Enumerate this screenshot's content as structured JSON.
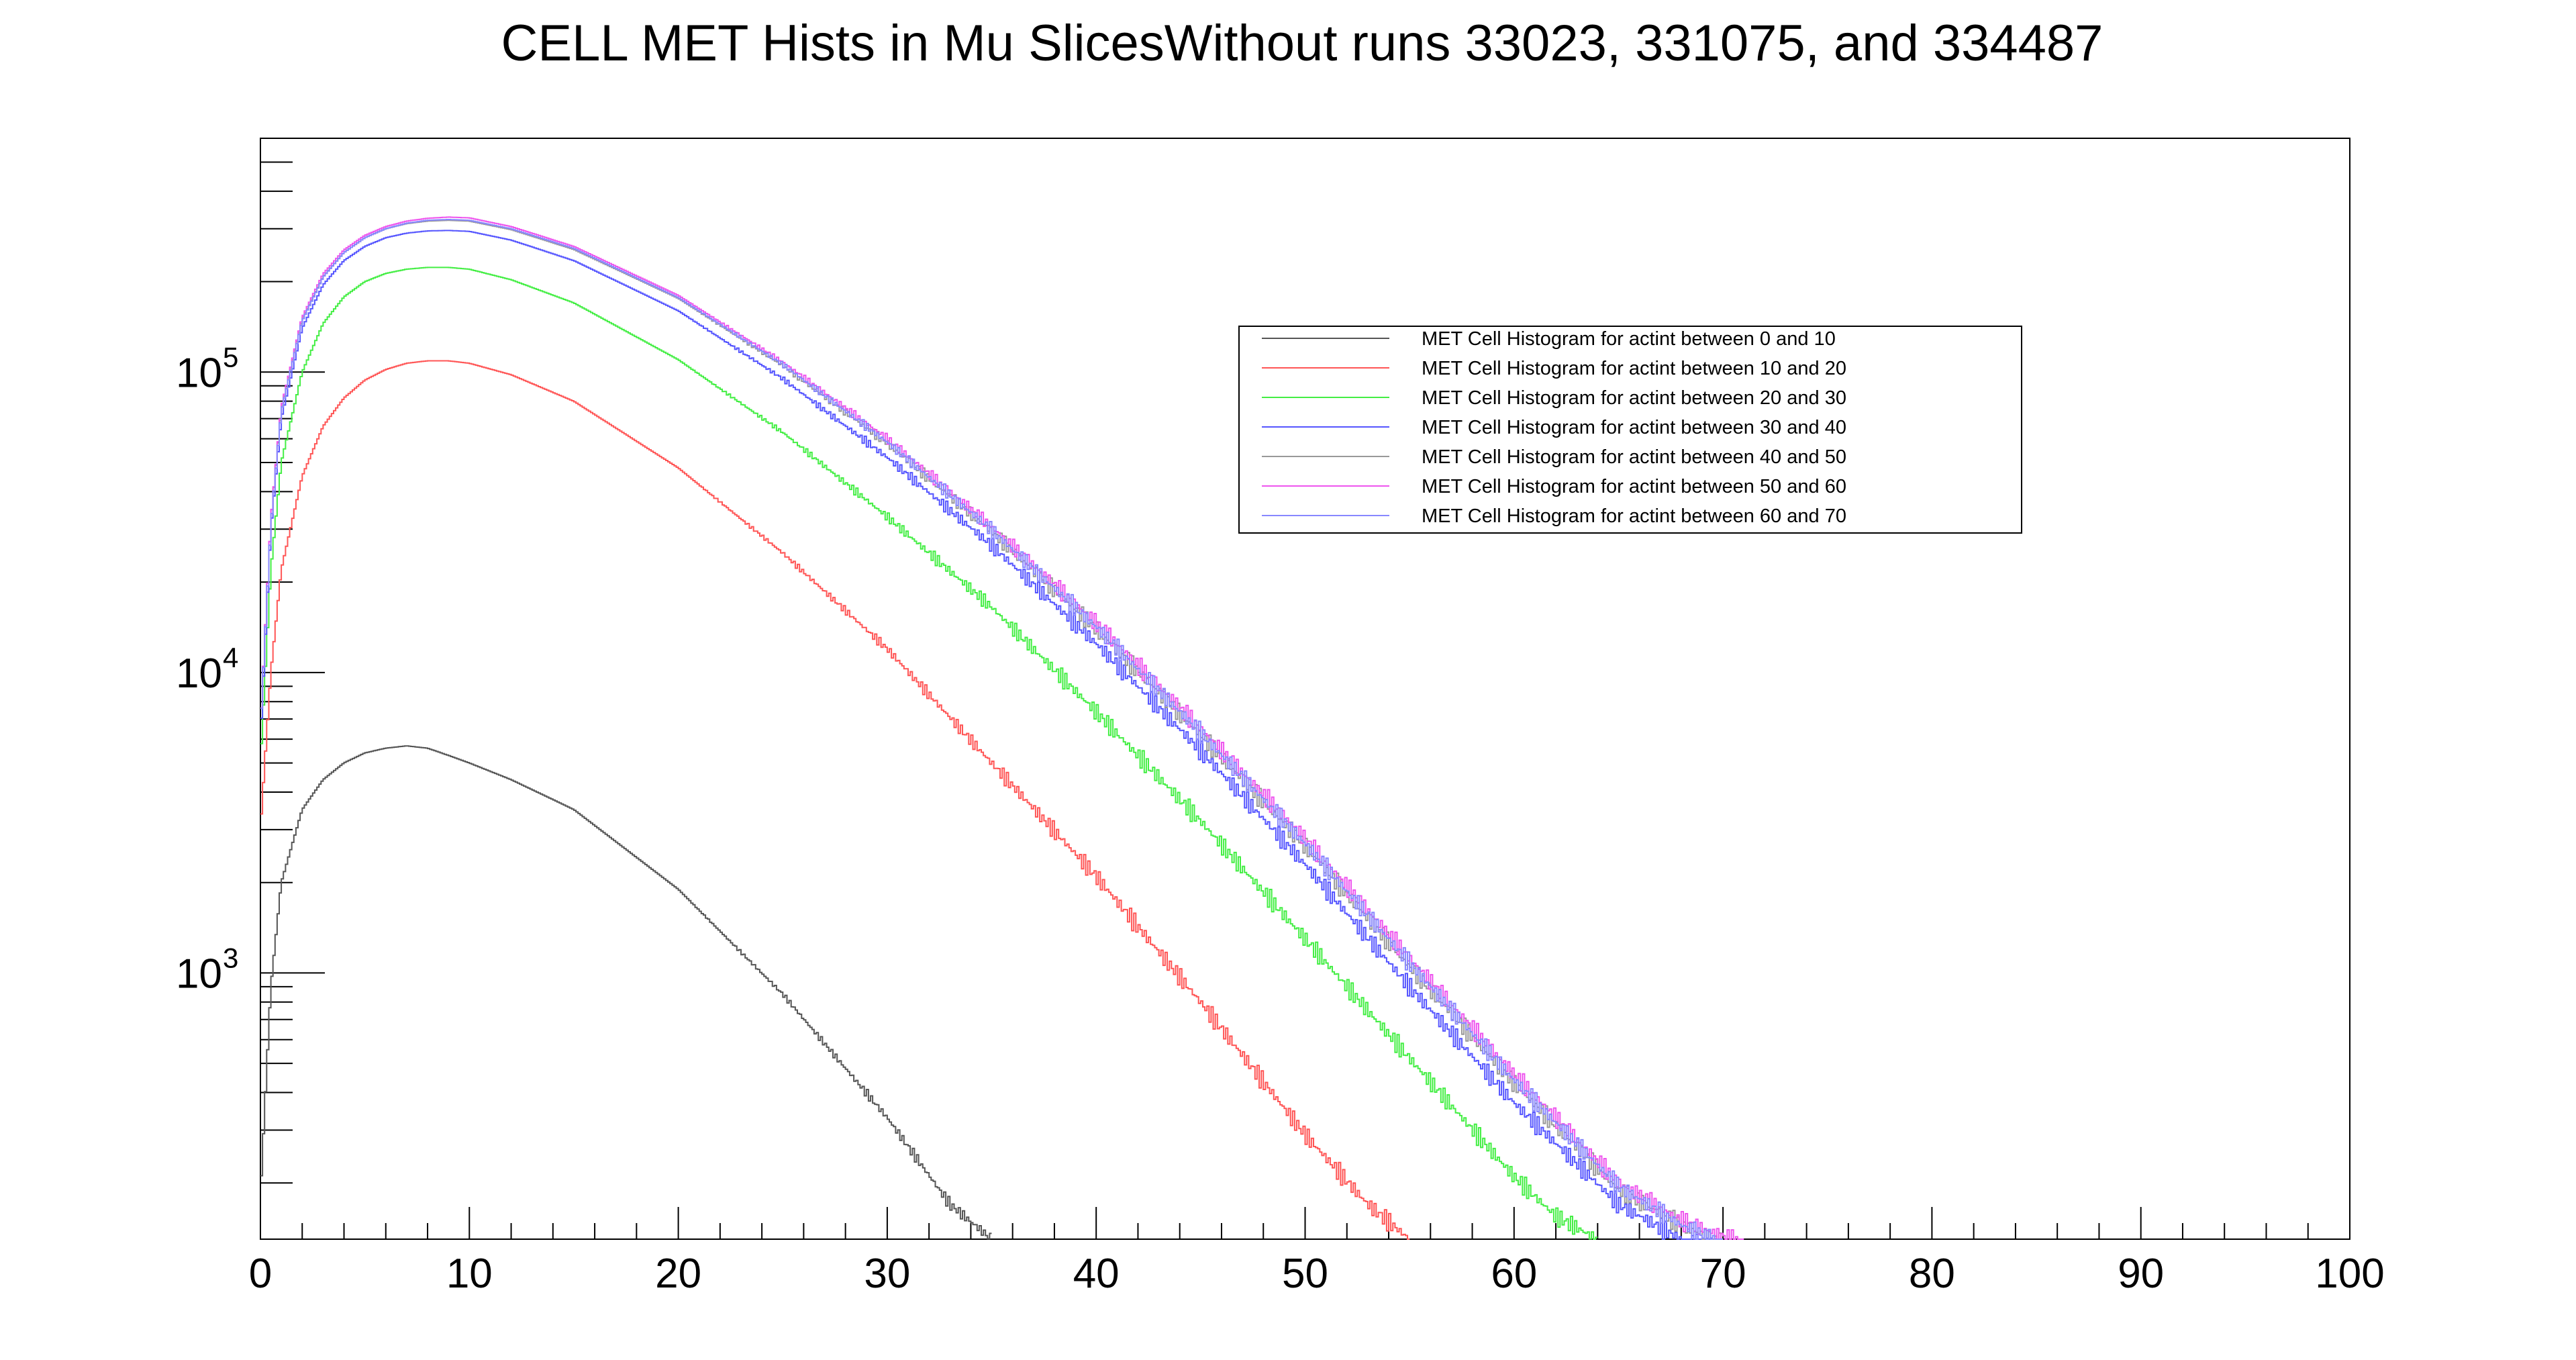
{
  "chart_data": {
    "type": "line",
    "title": "CELL MET Hists in Mu SlicesWithout runs 33023, 331075, and 334487",
    "xlabel": "",
    "ylabel": "",
    "xlim": [
      0,
      100
    ],
    "ylim": [
      130,
      600000
    ],
    "y_scale": "log",
    "grid": false,
    "legend_position": "top-right",
    "x_ticks": [
      "0",
      "10",
      "20",
      "30",
      "40",
      "50",
      "60",
      "70",
      "80",
      "90",
      "100"
    ],
    "y_ticks": [
      {
        "base": "10",
        "exp": "3"
      },
      {
        "base": "10",
        "exp": "4"
      },
      {
        "base": "10",
        "exp": "5"
      }
    ],
    "series": [
      {
        "name": "MET Cell Histogram for actint between 0 and 10",
        "color": "#555555",
        "x": [
          0,
          0.5,
          1,
          2,
          3,
          4,
          5,
          6,
          7,
          8,
          9,
          10,
          12,
          15,
          20,
          25,
          30,
          33,
          35
        ],
        "y": [
          180,
          900,
          2000,
          3500,
          4400,
          5000,
          5400,
          5600,
          5700,
          5600,
          5300,
          5000,
          4400,
          3500,
          1900,
          850,
          330,
          170,
          130
        ]
      },
      {
        "name": "MET Cell Histogram for actint between 10 and 20",
        "color": "#ff5555",
        "x": [
          0,
          0.5,
          1,
          2,
          3,
          4,
          5,
          6,
          7,
          8,
          9,
          10,
          12,
          15,
          20,
          25,
          30,
          35,
          40,
          45,
          50,
          53,
          55
        ],
        "y": [
          3000,
          10000,
          22000,
          45000,
          66000,
          82000,
          94000,
          102000,
          107000,
          109000,
          109000,
          107000,
          98000,
          80000,
          48000,
          25000,
          12000,
          5000,
          2100,
          800,
          290,
          170,
          130
        ]
      },
      {
        "name": "MET Cell Histogram for actint between 20 and 30",
        "color": "#44ee44",
        "x": [
          0,
          0.5,
          1,
          2,
          3,
          4,
          5,
          6,
          7,
          8,
          9,
          10,
          12,
          15,
          20,
          25,
          30,
          35,
          40,
          45,
          50,
          55,
          60,
          62,
          64
        ],
        "y": [
          5000,
          22000,
          50000,
          100000,
          145000,
          178000,
          200000,
          213000,
          220000,
          223000,
          223000,
          220000,
          203000,
          170000,
          110000,
          63000,
          33000,
          16500,
          7400,
          3200,
          1300,
          520,
          210,
          155,
          130
        ]
      },
      {
        "name": "MET Cell Histogram for actint between 30 and 40",
        "color": "#5555ff",
        "x": [
          0,
          0.5,
          1,
          2,
          3,
          4,
          5,
          6,
          7,
          8,
          9,
          10,
          12,
          15,
          20,
          25,
          30,
          35,
          40,
          45,
          50,
          55,
          60,
          65,
          68,
          70
        ],
        "y": [
          6000,
          30000,
          70000,
          140000,
          195000,
          235000,
          262000,
          280000,
          290000,
          295000,
          296000,
          294000,
          275000,
          235000,
          160000,
          95000,
          52000,
          26500,
          12500,
          5500,
          2300,
          900,
          370,
          170,
          130,
          120
        ]
      },
      {
        "name": "MET Cell Histogram for actint between 40 and 50",
        "color": "#999999",
        "x": [
          0,
          0.5,
          1,
          2,
          3,
          4,
          5,
          6,
          7,
          8,
          9,
          10,
          12,
          15,
          20,
          25,
          30,
          35,
          40,
          45,
          50,
          55,
          60,
          65,
          68,
          70
        ],
        "y": [
          6500,
          32000,
          75000,
          150000,
          208000,
          250000,
          280000,
          300000,
          312000,
          318000,
          320000,
          318000,
          298000,
          256000,
          176000,
          105000,
          58000,
          29500,
          14000,
          6200,
          2650,
          1050,
          430,
          190,
          145,
          125
        ]
      },
      {
        "name": "MET Cell Histogram for actint between 50 and 60",
        "color": "#ee55ee",
        "x": [
          0,
          0.5,
          1,
          2,
          3,
          4,
          5,
          6,
          7,
          8,
          9,
          10,
          12,
          15,
          20,
          25,
          30,
          35,
          40,
          45,
          50,
          55,
          60,
          65,
          68,
          71
        ],
        "y": [
          6500,
          32000,
          76000,
          152000,
          212000,
          255000,
          285000,
          305000,
          318000,
          325000,
          328000,
          326000,
          305000,
          262000,
          180000,
          108000,
          60000,
          30500,
          14600,
          6500,
          2800,
          1120,
          460,
          200,
          150,
          125
        ]
      },
      {
        "name": "MET Cell Histogram for actint between 60 and 70",
        "color": "#8888ff",
        "x": [
          0,
          0.5,
          1,
          2,
          3,
          4,
          5,
          6,
          7,
          8,
          9,
          10,
          12,
          15,
          20,
          25,
          30,
          35,
          40,
          45,
          50,
          55,
          60,
          65,
          68,
          70
        ],
        "y": [
          6500,
          31000,
          74000,
          148000,
          207000,
          250000,
          280000,
          300000,
          313000,
          320000,
          322000,
          320000,
          300000,
          258000,
          177000,
          106000,
          58500,
          29800,
          14200,
          6300,
          2700,
          1080,
          440,
          195,
          145,
          125
        ]
      }
    ]
  }
}
